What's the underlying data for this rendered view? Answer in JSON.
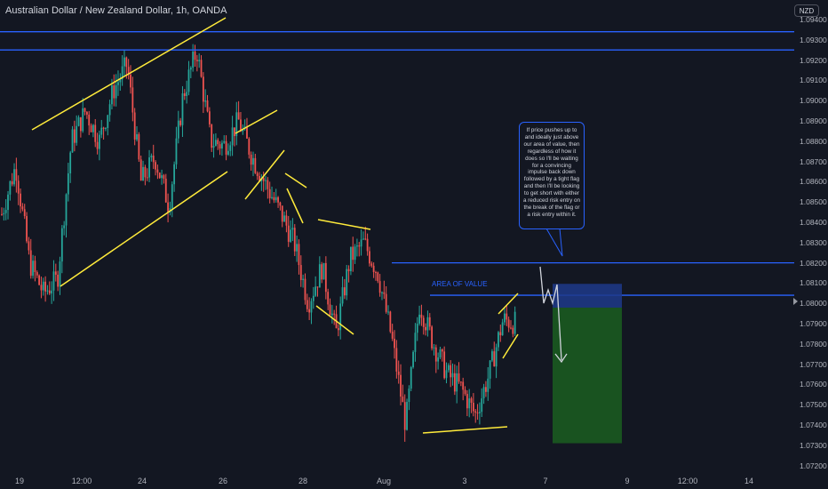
{
  "header": {
    "title": "Australian Dollar / New Zealand Dollar, 1h, OANDA",
    "currency": "NZD"
  },
  "annotations": {
    "note_text": "If price pushes up to and ideally just above our area of value, then regardless of how it does so I'll be waiting for a convincing impulse back down followed by a tight flag and then I'll be looking to get short with either a reduced risk entry on the break of the flag or a risk entry within it.",
    "area_label": "AREA OF VALUE"
  },
  "colors": {
    "background": "#131722",
    "bull": "#26a69a",
    "bear": "#ef5350",
    "level_line": "#2962ff",
    "trendline": "#ffeb3b",
    "target_zone": "#1b5e20",
    "stop_zone": "#1e3a8a"
  },
  "chart_data": {
    "type": "candlestick",
    "title": "Australian Dollar / New Zealand Dollar, 1h, OANDA",
    "ylabel": "NZD",
    "ylim": [
      1.072,
      1.0945
    ],
    "x_tick_labels": [
      "19",
      "12:00",
      "24",
      "26",
      "28",
      "Aug",
      "3",
      "7",
      "9",
      "12:00",
      "14"
    ],
    "y_tick_labels": [
      "1.07200",
      "1.07300",
      "1.07400",
      "1.07500",
      "1.07600",
      "1.07700",
      "1.07800",
      "1.07900",
      "1.08000",
      "1.08100",
      "1.08200",
      "1.08300",
      "1.08400",
      "1.08500",
      "1.08600",
      "1.08700",
      "1.08800",
      "1.08900",
      "1.09000",
      "1.09100",
      "1.09200",
      "1.09300",
      "1.09400"
    ],
    "close_path": [
      [
        0,
        1.0844
      ],
      [
        1,
        1.0868
      ],
      [
        2,
        1.082
      ],
      [
        3,
        1.0805
      ],
      [
        4,
        1.0812
      ],
      [
        5,
        1.088
      ],
      [
        6,
        1.0895
      ],
      [
        7,
        1.088
      ],
      [
        8,
        1.0905
      ],
      [
        9,
        1.0918
      ],
      [
        10,
        1.086
      ],
      [
        11,
        1.0872
      ],
      [
        12,
        1.0848
      ],
      [
        13,
        1.0902
      ],
      [
        14,
        1.0925
      ],
      [
        15,
        1.088
      ],
      [
        16,
        1.0878
      ],
      [
        17,
        1.089
      ],
      [
        18,
        1.0872
      ],
      [
        19,
        1.0858
      ],
      [
        20,
        1.0845
      ],
      [
        21,
        1.083
      ],
      [
        22,
        1.08
      ],
      [
        23,
        1.0818
      ],
      [
        24,
        1.0785
      ],
      [
        25,
        1.0822
      ],
      [
        26,
        1.083
      ],
      [
        27,
        1.0815
      ],
      [
        28,
        1.0783
      ],
      [
        29,
        1.074
      ],
      [
        30,
        1.08
      ],
      [
        31,
        1.078
      ],
      [
        32,
        1.0765
      ],
      [
        33,
        1.0758
      ],
      [
        34,
        1.0745
      ],
      [
        35,
        1.0765
      ],
      [
        36,
        1.0792
      ],
      [
        37,
        1.079
      ]
    ],
    "levels": [
      1.0934,
      1.0925,
      1.082,
      1.0804
    ],
    "area_of_value": {
      "label": "AREA OF VALUE",
      "price": 1.0804
    },
    "trade": {
      "stop": [
        1.0797,
        1.0807
      ],
      "target": [
        1.0731,
        1.0797
      ]
    },
    "grid": false
  }
}
